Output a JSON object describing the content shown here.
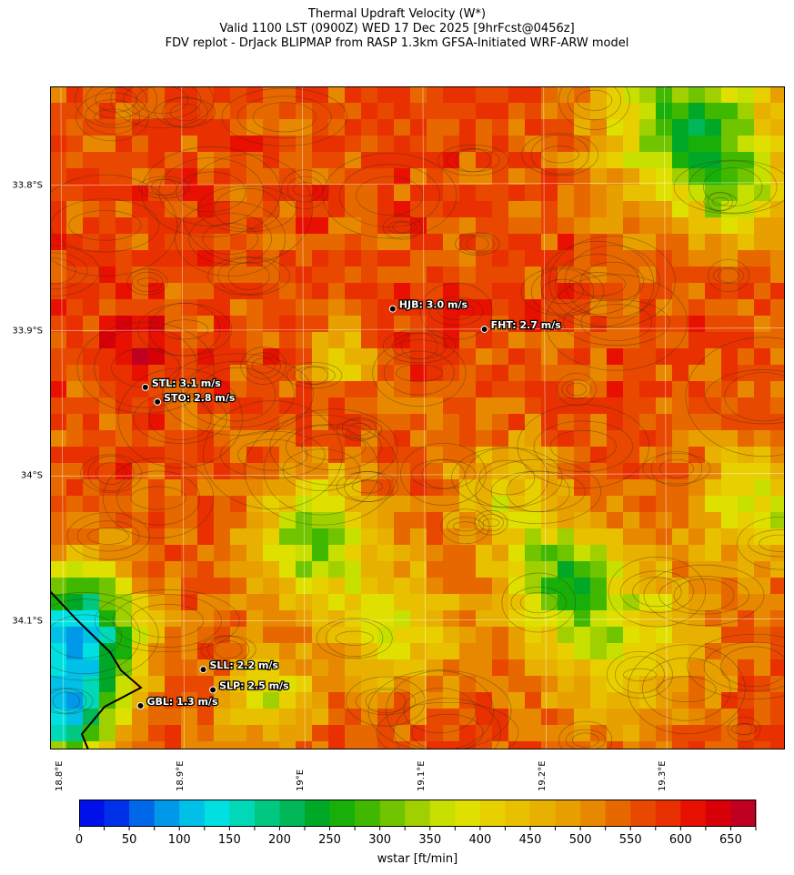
{
  "title": {
    "line1": "Thermal Updraft Velocity (W*)",
    "line2": "Valid 1100 LST (0900Z) WED 17 Dec 2025 [9hrFcst@0456z]",
    "line3": "FDV replot - DrJack BLIPMAP from RASP 1.3km GFSA-Initiated WRF-ARW model"
  },
  "map": {
    "lat_ticks": [
      "33.8°S",
      "33.9°S",
      "34°S",
      "34.1°S"
    ],
    "lat_values": [
      -33.8,
      -33.9,
      -34.0,
      -34.1
    ],
    "lon_ticks": [
      "18.8°E",
      "18.9°E",
      "19°E",
      "19.1°E",
      "19.2°E",
      "19.3°E"
    ],
    "lon_values": [
      18.8,
      18.9,
      19.0,
      19.1,
      19.2,
      19.3
    ],
    "lon_range": [
      18.791,
      19.4
    ],
    "lat_range": [
      -33.732,
      -34.188
    ],
    "stations": [
      {
        "label": "HJB: 3.0 m/s",
        "lon": 19.075,
        "lat": -33.885
      },
      {
        "label": "FHT: 2.7 m/s",
        "lon": 19.151,
        "lat": -33.899
      },
      {
        "label": "STL: 3.1 m/s",
        "lon": 18.87,
        "lat": -33.939
      },
      {
        "label": "STO: 2.8 m/s",
        "lon": 18.88,
        "lat": -33.949
      },
      {
        "label": "SLL: 2.2 m/s",
        "lon": 18.918,
        "lat": -34.133
      },
      {
        "label": "SLP: 2.5 m/s",
        "lon": 18.926,
        "lat": -34.147
      },
      {
        "label": "GBL: 1.3 m/s",
        "lon": 18.866,
        "lat": -34.158
      }
    ]
  },
  "colorbar": {
    "label": "wstar [ft/min]",
    "ticks": [
      "0",
      "50",
      "100",
      "150",
      "200",
      "250",
      "300",
      "350",
      "400",
      "450",
      "500",
      "550",
      "600",
      "650"
    ],
    "range": [
      0,
      675
    ],
    "step": 25,
    "colors": [
      "#0010e8",
      "#0030e8",
      "#0068e8",
      "#0098e8",
      "#00c0e8",
      "#00e0e0",
      "#00d8b8",
      "#00c880",
      "#00b858",
      "#00a828",
      "#18b008",
      "#40b800",
      "#70c400",
      "#a0d000",
      "#c8e000",
      "#e0e000",
      "#e8d000",
      "#e8c000",
      "#e8b000",
      "#e8a000",
      "#e88800",
      "#e86800",
      "#e84800",
      "#e83000",
      "#e81000",
      "#d80008",
      "#c00020"
    ]
  }
}
